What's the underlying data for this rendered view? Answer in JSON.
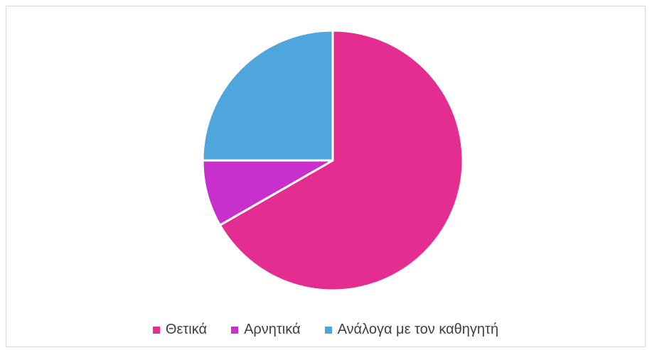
{
  "chart_data": {
    "type": "pie",
    "title": "",
    "legend_position": "bottom",
    "slices": [
      {
        "label": "Θετικά",
        "value": 66.7,
        "color": "#E32D91"
      },
      {
        "label": "Αρνητικά",
        "value": 8.3,
        "color": "#C830CC"
      },
      {
        "label": "Ανάλογα με τον καθηγητή",
        "value": 25.0,
        "color": "#4EA6DC"
      }
    ]
  }
}
